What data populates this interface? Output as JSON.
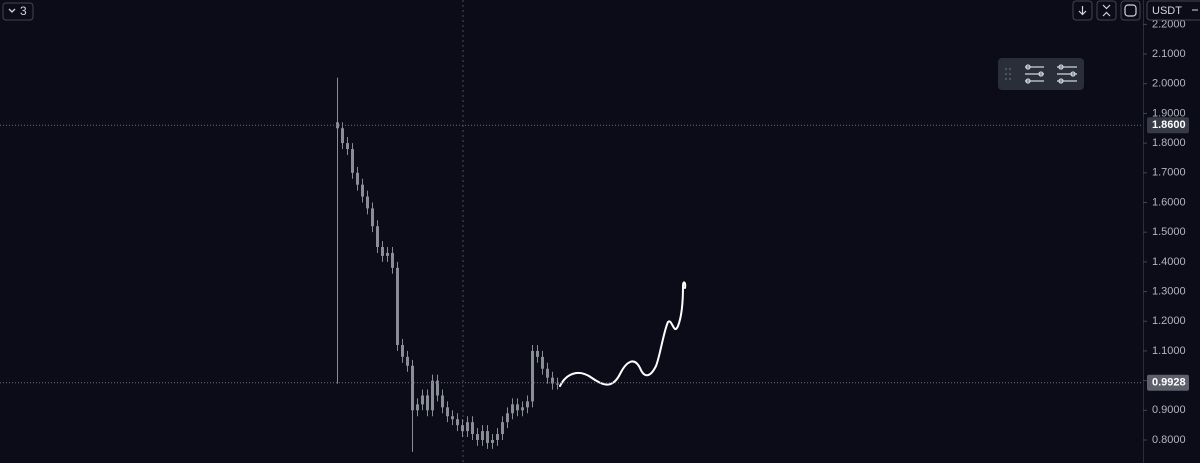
{
  "toolbar": {
    "interval": "3",
    "quote": "USDT"
  },
  "chart_data": {
    "type": "candlestick",
    "color": "#8a8d96",
    "open": [
      1.87,
      1.85,
      1.8,
      1.78,
      1.7,
      1.66,
      1.62,
      1.58,
      1.52,
      1.45,
      1.42,
      1.43,
      1.38,
      1.12,
      1.08,
      1.05,
      0.9,
      0.92,
      0.95,
      0.9,
      1.0,
      0.95,
      0.91,
      0.88,
      0.87,
      0.85,
      0.83,
      0.86,
      0.82,
      0.8,
      0.83,
      0.79,
      0.8,
      0.82,
      0.86,
      0.89,
      0.92,
      0.9,
      0.91,
      0.93,
      1.1,
      1.08,
      1.04,
      1.01,
      0.99
    ],
    "high": [
      2.02,
      1.87,
      1.82,
      1.8,
      1.72,
      1.68,
      1.64,
      1.6,
      1.54,
      1.47,
      1.45,
      1.45,
      1.4,
      1.14,
      1.1,
      1.07,
      0.94,
      0.97,
      0.97,
      1.02,
      1.02,
      0.97,
      0.93,
      0.9,
      0.89,
      0.87,
      0.88,
      0.88,
      0.84,
      0.85,
      0.85,
      0.82,
      0.84,
      0.88,
      0.91,
      0.94,
      0.94,
      0.93,
      0.95,
      1.12,
      1.12,
      1.1,
      1.06,
      1.03,
      1.01
    ],
    "low": [
      0.99,
      1.78,
      1.76,
      1.68,
      1.64,
      1.6,
      1.56,
      1.5,
      1.43,
      1.4,
      1.4,
      1.36,
      1.1,
      1.06,
      1.03,
      0.76,
      0.88,
      0.9,
      0.88,
      0.88,
      0.93,
      0.89,
      0.86,
      0.85,
      0.83,
      0.81,
      0.81,
      0.8,
      0.78,
      0.78,
      0.77,
      0.77,
      0.78,
      0.8,
      0.84,
      0.87,
      0.88,
      0.88,
      0.89,
      0.91,
      1.06,
      1.02,
      0.99,
      0.97,
      0.97
    ],
    "close": [
      1.85,
      1.8,
      1.78,
      1.7,
      1.66,
      1.62,
      1.58,
      1.52,
      1.45,
      1.42,
      1.43,
      1.38,
      1.12,
      1.08,
      1.05,
      0.9,
      0.92,
      0.95,
      0.9,
      1.0,
      0.95,
      0.91,
      0.88,
      0.87,
      0.85,
      0.83,
      0.86,
      0.82,
      0.8,
      0.83,
      0.79,
      0.8,
      0.82,
      0.86,
      0.89,
      0.92,
      0.9,
      0.91,
      0.93,
      1.1,
      1.08,
      1.04,
      1.01,
      0.99,
      0.99
    ],
    "ylim": [
      0.7225,
      2.282
    ],
    "yticks": [
      {
        "value": 0.8,
        "label": "0.8000"
      },
      {
        "value": 0.9,
        "label": "0.9000"
      },
      {
        "value": 1.0,
        "label": "1.0000"
      },
      {
        "value": 1.1,
        "label": "1.1000"
      },
      {
        "value": 1.2,
        "label": "1.2000"
      },
      {
        "value": 1.3,
        "label": "1.3000"
      },
      {
        "value": 1.4,
        "label": "1.4000"
      },
      {
        "value": 1.5,
        "label": "1.5000"
      },
      {
        "value": 1.6,
        "label": "1.6000"
      },
      {
        "value": 1.7,
        "label": "1.7000"
      },
      {
        "value": 1.8,
        "label": "1.8000"
      },
      {
        "value": 1.9,
        "label": "1.9000"
      },
      {
        "value": 2.0,
        "label": "2.0000"
      },
      {
        "value": 2.1,
        "label": "2.1000"
      },
      {
        "value": 2.2,
        "label": "2.2000"
      }
    ],
    "crosshair_price": {
      "value": 1.86,
      "label": "1.8600"
    },
    "last_price": {
      "value": 0.9928,
      "label": "0.9928"
    }
  }
}
